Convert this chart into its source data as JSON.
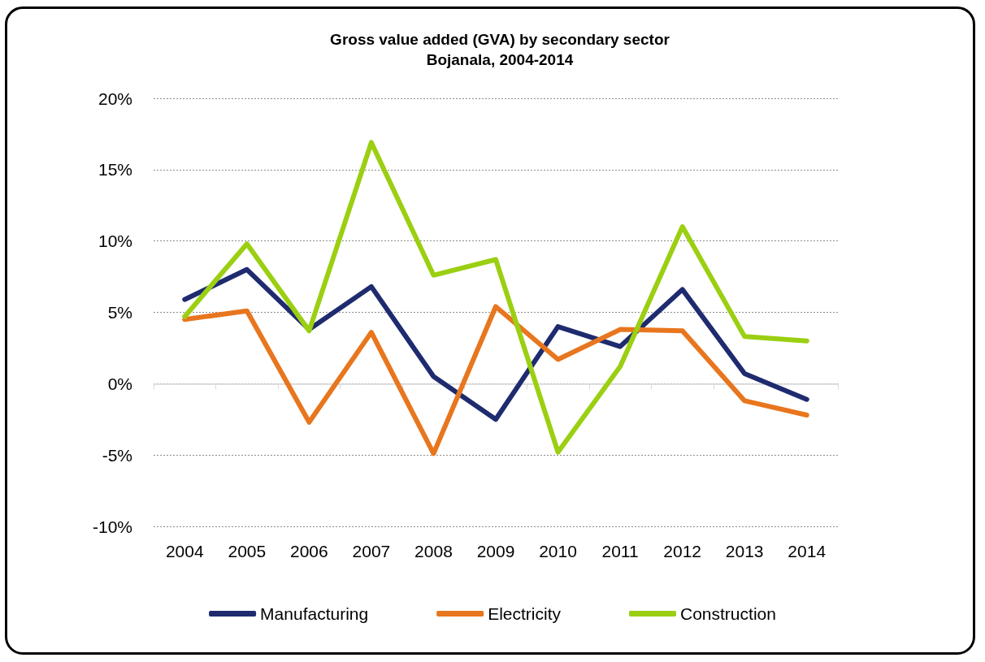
{
  "chart_data": {
    "type": "line",
    "title": "Gross value added (GVA) by secondary sector",
    "subtitle": "Bojanala, 2004-2014",
    "categories": [
      "2004",
      "2005",
      "2006",
      "2007",
      "2008",
      "2009",
      "2010",
      "2011",
      "2012",
      "2013",
      "2014"
    ],
    "series": [
      {
        "name": "Manufacturing",
        "color": "#1f2b6f",
        "values": [
          5.9,
          8.0,
          3.8,
          6.8,
          0.5,
          -2.5,
          4.0,
          2.6,
          6.6,
          0.7,
          -1.1
        ]
      },
      {
        "name": "Electricity",
        "color": "#e8761e",
        "values": [
          4.5,
          5.1,
          -2.7,
          3.6,
          -4.9,
          5.4,
          1.7,
          3.8,
          3.7,
          -1.2,
          -2.2
        ]
      },
      {
        "name": "Construction",
        "color": "#9bcf12",
        "values": [
          4.7,
          9.8,
          3.7,
          16.9,
          7.6,
          8.7,
          -4.8,
          1.2,
          11.0,
          3.3,
          3.0
        ]
      }
    ],
    "ylim": [
      -10,
      20
    ],
    "yticks": [
      {
        "value": -10,
        "label": "-10%"
      },
      {
        "value": -5,
        "label": "-5%"
      },
      {
        "value": 0,
        "label": "0%"
      },
      {
        "value": 5,
        "label": "5%"
      },
      {
        "value": 10,
        "label": "10%"
      },
      {
        "value": 15,
        "label": "15%"
      },
      {
        "value": 20,
        "label": "20%"
      }
    ],
    "grid": "y",
    "legend": "bottom",
    "marker": "none",
    "line_style": "solid"
  }
}
